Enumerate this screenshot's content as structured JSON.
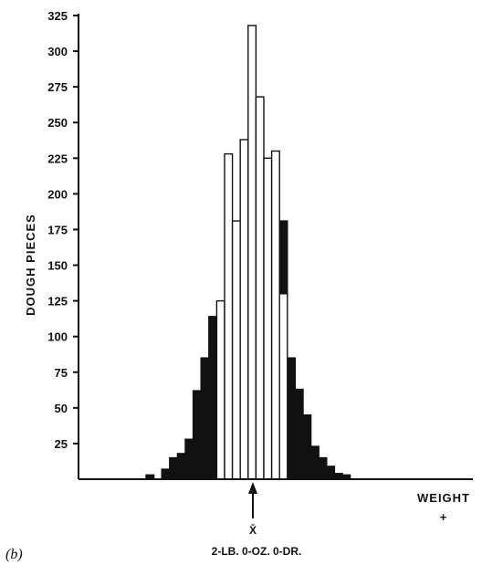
{
  "chart_data": {
    "type": "bar",
    "panel_label": "(b)",
    "ylabel": "DOUGH PIECES",
    "xlabel": "WEIGHT",
    "x_direction_marker": "+",
    "mean_symbol": "X̄",
    "mean_label": "2-LB. 0-OZ. 0-DR.",
    "ylim": [
      0,
      325
    ],
    "yticks": [
      25,
      50,
      75,
      100,
      125,
      150,
      175,
      200,
      225,
      250,
      275,
      300,
      325
    ],
    "grid": false,
    "series": [
      {
        "fill": "black",
        "values": [
          3,
          0,
          7,
          15,
          18,
          28,
          62,
          85,
          114,
          0,
          0,
          0,
          0,
          0,
          0,
          0,
          0,
          181,
          85,
          63,
          45,
          23,
          15,
          9,
          4,
          3
        ]
      },
      {
        "fill": "white",
        "values": [
          0,
          0,
          0,
          0,
          0,
          0,
          0,
          0,
          0,
          125,
          228,
          181,
          238,
          318,
          268,
          225,
          230,
          130,
          0,
          0,
          0,
          0,
          0,
          0,
          0,
          0
        ]
      }
    ]
  },
  "colors": {
    "ink": "#111111",
    "background": "#ffffff"
  }
}
